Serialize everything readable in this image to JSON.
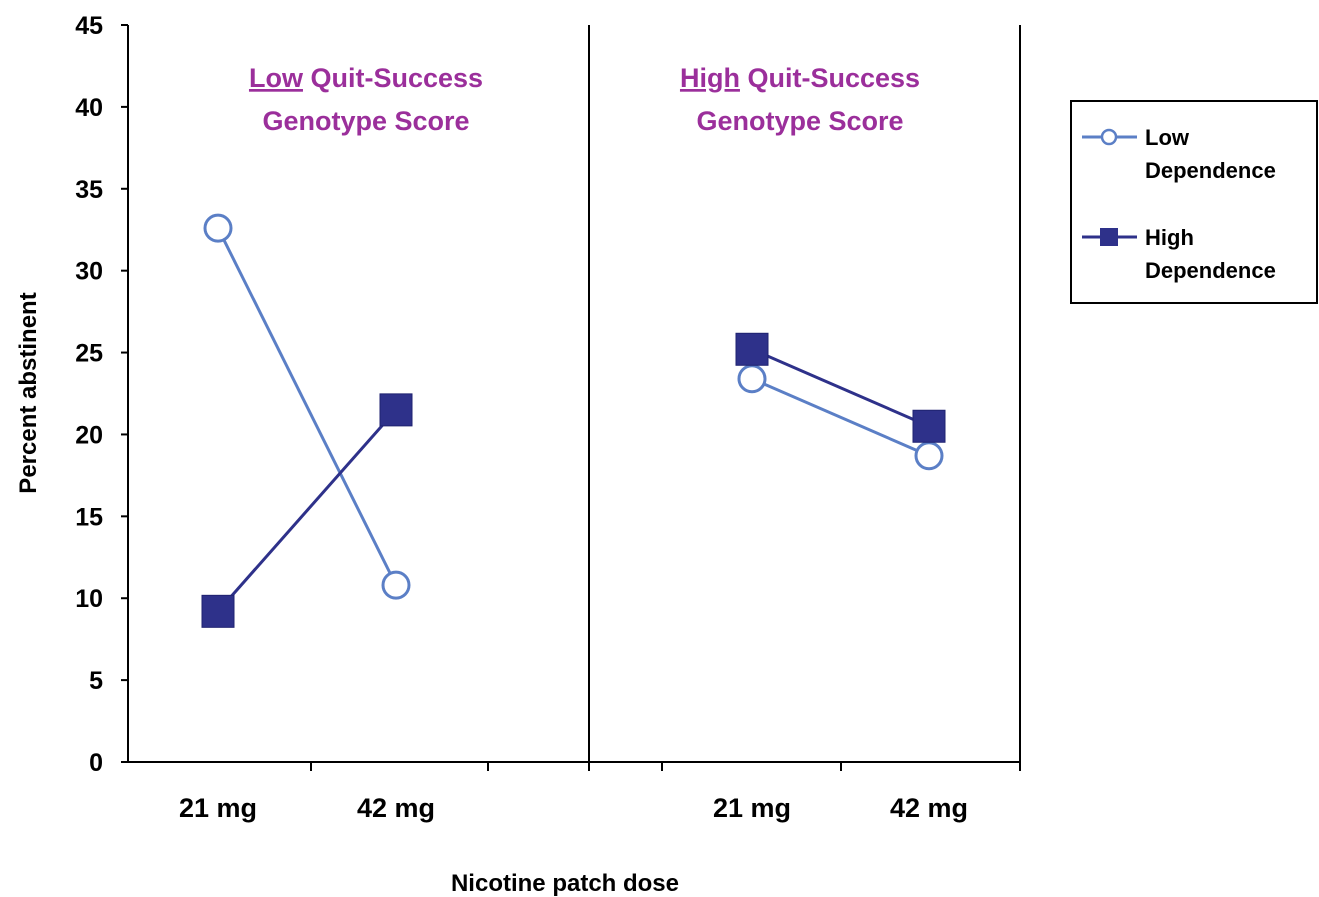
{
  "chart_data": {
    "type": "line",
    "ylabel": "Percent abstinent",
    "xlabel": "Nicotine patch dose",
    "ylim": [
      0,
      45
    ],
    "yticks": [
      0,
      5,
      10,
      15,
      20,
      25,
      30,
      35,
      40,
      45
    ],
    "grid": false,
    "legend_position": "right",
    "categories": [
      "21 mg",
      "42 mg"
    ],
    "panels": [
      {
        "title_emph": "Low",
        "title_rest": " Quit-Success",
        "title_line2": "Genotype Score",
        "series": [
          {
            "name": "Low Dependence",
            "values": [
              32.6,
              10.8
            ]
          },
          {
            "name": "High Dependence",
            "values": [
              9.2,
              21.5
            ]
          }
        ]
      },
      {
        "title_emph": "High",
        "title_rest": " Quit-Success",
        "title_line2": "Genotype Score",
        "series": [
          {
            "name": "Low Dependence",
            "values": [
              23.4,
              18.7
            ]
          },
          {
            "name": "High Dependence",
            "values": [
              25.2,
              20.5
            ]
          }
        ]
      }
    ],
    "legend": [
      {
        "series": "Low Dependence",
        "line1": "Low",
        "line2": "Dependence",
        "marker": "open-circle"
      },
      {
        "series": "High Dependence",
        "line1": "High",
        "line2": "Dependence",
        "marker": "filled-square"
      }
    ],
    "colors": {
      "low_dependence": "#5b7fc6",
      "high_dependence": "#2e318a",
      "panel_title": "#9b2f9b",
      "axis": "#000000"
    }
  }
}
